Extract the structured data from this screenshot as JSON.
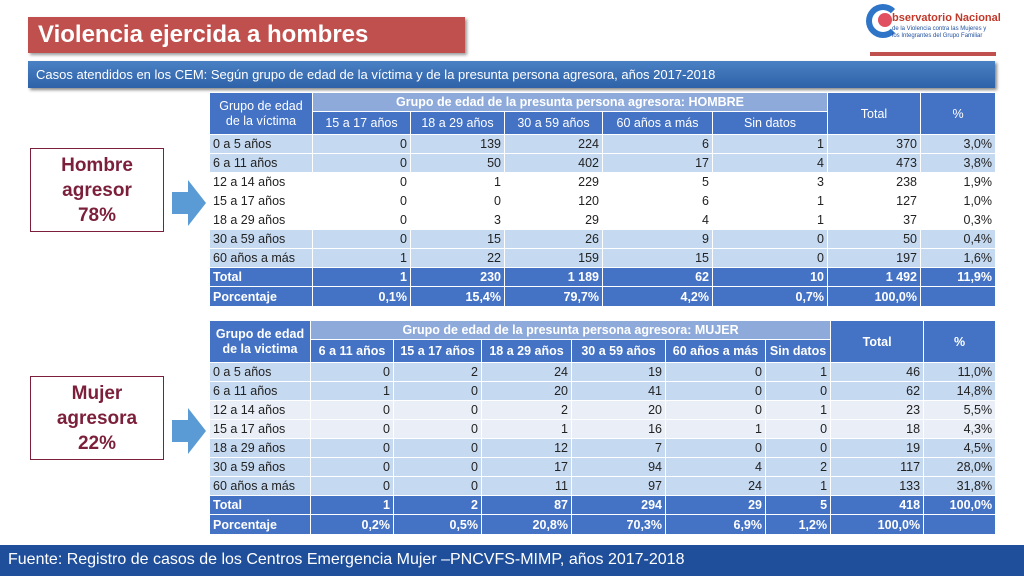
{
  "title": "Violencia ejercida a hombres",
  "logo": {
    "name": "bservatorio Nacional",
    "sub1": "de la Violencia contra las Mujeres y",
    "sub2": "los Integrantes del Grupo Familiar"
  },
  "subtitle": "Casos atendidos en los CEM: Según grupo de edad de la víctima y de la presunta persona agresora, años 2017-2018",
  "hombre_box": {
    "line1": "Hombre",
    "line2": "agresor",
    "pct": "78%"
  },
  "mujer_box": {
    "line1": "Mujer",
    "line2": "agresora",
    "pct": "22%"
  },
  "table_hombre": {
    "victim_header": "Grupo de edad de la víctima",
    "group_header": "Grupo de edad de la presunta persona agresora:  HOMBRE",
    "total_header": "Total",
    "pct_header": "%",
    "columns": [
      "15 a 17 años",
      "18 a 29 años",
      "30 a 59 años",
      "60 años a más",
      "Sin datos"
    ],
    "rows": [
      {
        "label": "0 a 5 años",
        "values": [
          "0",
          "139",
          "224",
          "6",
          "1"
        ],
        "total": "370",
        "pct": "3,0%"
      },
      {
        "label": "6 a 11 años",
        "values": [
          "0",
          "50",
          "402",
          "17",
          "4"
        ],
        "total": "473",
        "pct": "3,8%"
      },
      {
        "label": "12 a 14 años",
        "values": [
          "0",
          "1",
          "229",
          "5",
          "3"
        ],
        "total": "238",
        "pct": "1,9%"
      },
      {
        "label": "15 a 17 años",
        "values": [
          "0",
          "0",
          "120",
          "6",
          "1"
        ],
        "total": "127",
        "pct": "1,0%"
      },
      {
        "label": "18 a 29 años",
        "values": [
          "0",
          "3",
          "29",
          "4",
          "1"
        ],
        "total": "37",
        "pct": "0,3%"
      },
      {
        "label": "30 a 59 años",
        "values": [
          "0",
          "15",
          "26",
          "9",
          "0"
        ],
        "total": "50",
        "pct": "0,4%"
      },
      {
        "label": "60 años a más",
        "values": [
          "1",
          "22",
          "159",
          "15",
          "0"
        ],
        "total": "197",
        "pct": "1,6%"
      }
    ],
    "total_row": {
      "label": "Total",
      "values": [
        "1",
        "230",
        "1 189",
        "62",
        "10"
      ],
      "total": "1 492",
      "pct": "11,9%"
    },
    "pct_row": {
      "label": "Porcentaje",
      "values": [
        "0,1%",
        "15,4%",
        "79,7%",
        "4,2%",
        "0,7%"
      ],
      "total": "100,0%",
      "pct": ""
    }
  },
  "table_mujer": {
    "victim_header": "Grupo de edad de la victima",
    "group_header": "Grupo de edad de la presunta persona agresora:  MUJER",
    "total_header": "Total",
    "pct_header": "%",
    "columns": [
      "6 a 11 años",
      "15 a 17 años",
      "18 a 29 años",
      "30 a 59 años",
      "60 años a más",
      "Sin datos"
    ],
    "rows": [
      {
        "label": "0 a 5 años",
        "values": [
          "0",
          "2",
          "24",
          "19",
          "0",
          "1"
        ],
        "total": "46",
        "pct": "11,0%"
      },
      {
        "label": "6 a 11 años",
        "values": [
          "1",
          "0",
          "20",
          "41",
          "0",
          "0"
        ],
        "total": "62",
        "pct": "14,8%"
      },
      {
        "label": "12 a 14 años",
        "values": [
          "0",
          "0",
          "2",
          "20",
          "0",
          "1"
        ],
        "total": "23",
        "pct": "5,5%"
      },
      {
        "label": "15 a 17 años",
        "values": [
          "0",
          "0",
          "1",
          "16",
          "1",
          "0"
        ],
        "total": "18",
        "pct": "4,3%"
      },
      {
        "label": "18 a 29 años",
        "values": [
          "0",
          "0",
          "12",
          "7",
          "0",
          "0"
        ],
        "total": "19",
        "pct": "4,5%"
      },
      {
        "label": "30 a 59 años",
        "values": [
          "0",
          "0",
          "17",
          "94",
          "4",
          "2"
        ],
        "total": "117",
        "pct": "28,0%"
      },
      {
        "label": "60 años a más",
        "values": [
          "0",
          "0",
          "11",
          "97",
          "24",
          "1"
        ],
        "total": "133",
        "pct": "31,8%"
      }
    ],
    "total_row": {
      "label": "Total",
      "values": [
        "1",
        "2",
        "87",
        "294",
        "29",
        "5"
      ],
      "total": "418",
      "pct": "100,0%"
    },
    "pct_row": {
      "label": "Porcentaje",
      "values": [
        "0,2%",
        "0,5%",
        "20,8%",
        "70,3%",
        "6,9%",
        "1,2%"
      ],
      "total": "100,0%",
      "pct": ""
    }
  },
  "footer": "Fuente: Registro de casos de los Centros Emergencia Mujer –PNCVFS-MIMP, años 2017-2018",
  "colors": {
    "title_red": "#c0504d",
    "header_blue": "#4472c4",
    "row_light_blue": "#c5d9f1",
    "footer_blue": "#1f4e9a",
    "box_maroon": "#7b1f3a"
  }
}
